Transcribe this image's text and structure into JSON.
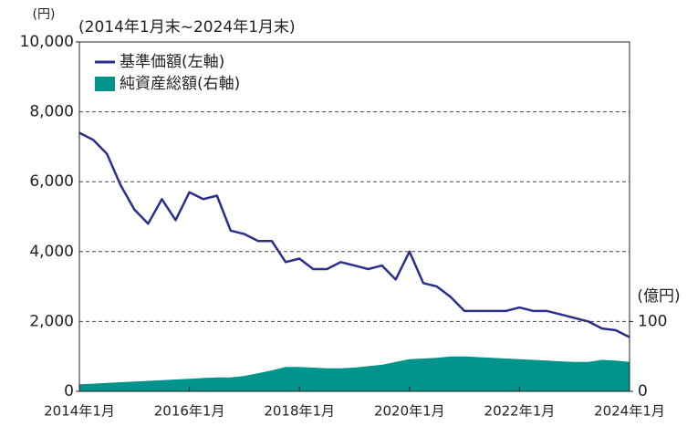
{
  "chart_data": {
    "type": "line",
    "y_label": "(円)",
    "subtitle": "(2014年1月末~2024年1月末)",
    "y2_label": "(億円)",
    "x": [
      "2014-01",
      "2014-04",
      "2014-07",
      "2014-10",
      "2015-01",
      "2015-04",
      "2015-07",
      "2015-10",
      "2016-01",
      "2016-04",
      "2016-07",
      "2016-10",
      "2017-01",
      "2017-04",
      "2017-07",
      "2017-10",
      "2018-01",
      "2018-04",
      "2018-07",
      "2018-10",
      "2019-01",
      "2019-04",
      "2019-07",
      "2019-10",
      "2020-01",
      "2020-04",
      "2020-07",
      "2020-10",
      "2021-01",
      "2021-04",
      "2021-07",
      "2021-10",
      "2022-01",
      "2022-04",
      "2022-07",
      "2022-10",
      "2023-01",
      "2023-04",
      "2023-07",
      "2023-10",
      "2024-01"
    ],
    "series": [
      {
        "name": "基準価額(左軸)",
        "color": "#2b2f8c",
        "kind": "line",
        "axis": "y",
        "values": [
          7400,
          7200,
          6800,
          5900,
          5200,
          4800,
          5500,
          4900,
          5700,
          5500,
          5600,
          4600,
          4500,
          4300,
          4300,
          3700,
          3800,
          3500,
          3500,
          3700,
          3600,
          3500,
          3600,
          3200,
          4000,
          3100,
          3000,
          2700,
          2300,
          2300,
          2300,
          2300,
          2400,
          2300,
          2300,
          2200,
          2100,
          2000,
          1800,
          1750,
          1550
        ]
      },
      {
        "name": "純資産総額(右軸)",
        "color": "#00948c",
        "kind": "area",
        "axis": "y2",
        "values": [
          10,
          11,
          12,
          13,
          14,
          15,
          16,
          17,
          18,
          19,
          20,
          20,
          22,
          26,
          30,
          35,
          35,
          34,
          33,
          33,
          34,
          36,
          38,
          42,
          46,
          47,
          48,
          50,
          50,
          49,
          48,
          47,
          46,
          45,
          44,
          43,
          42,
          42,
          45,
          44,
          42
        ]
      }
    ],
    "xlim": [
      "2014-01",
      "2024-01"
    ],
    "xticks": [
      {
        "value": "2014-01",
        "label": "2014年1月"
      },
      {
        "value": "2016-01",
        "label": "2016年1月"
      },
      {
        "value": "2018-01",
        "label": "2018年1月"
      },
      {
        "value": "2020-01",
        "label": "2020年1月"
      },
      {
        "value": "2022-01",
        "label": "2022年1月"
      },
      {
        "value": "2024-01",
        "label": "2024年1月"
      }
    ],
    "ylim": [
      0,
      10000
    ],
    "yticks": [
      0,
      {
        "value": 2000,
        "label": "2,000"
      },
      {
        "value": 4000,
        "label": "4,000"
      },
      {
        "value": 6000,
        "label": "6,000"
      },
      {
        "value": 8000,
        "label": "8,000"
      },
      {
        "value": 10000,
        "label": "10,000"
      }
    ],
    "y2lim": [
      0,
      500
    ],
    "y2ticks": [
      0,
      100
    ],
    "grid": true,
    "legend": "top-left"
  }
}
